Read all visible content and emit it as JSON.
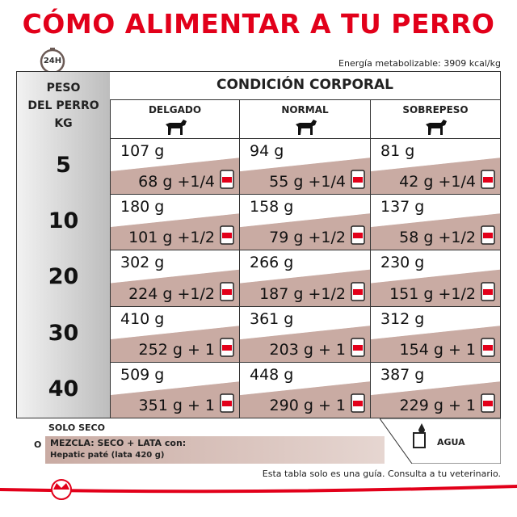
{
  "title": "CÓMO ALIMENTAR A TU PERRO",
  "clock_label": "24H",
  "energy": "Energía metabolizable: 3909 kcal/kg",
  "table": {
    "weight_header": [
      "PESO",
      "DEL PERRO",
      "KG"
    ],
    "condition_header": "CONDICIÓN CORPORAL",
    "conditions": [
      "DELGADO",
      "NORMAL",
      "SOBREPESO"
    ],
    "rows": [
      {
        "weight": "5",
        "cells": [
          {
            "dry": "107 g",
            "mix": "68 g +1/4"
          },
          {
            "dry": "94 g",
            "mix": "55 g +1/4"
          },
          {
            "dry": "81 g",
            "mix": "42 g +1/4"
          }
        ]
      },
      {
        "weight": "10",
        "cells": [
          {
            "dry": "180 g",
            "mix": "101 g +1/2"
          },
          {
            "dry": "158 g",
            "mix": "79 g +1/2"
          },
          {
            "dry": "137 g",
            "mix": "58 g +1/2"
          }
        ]
      },
      {
        "weight": "20",
        "cells": [
          {
            "dry": "302 g",
            "mix": "224 g +1/2"
          },
          {
            "dry": "266 g",
            "mix": "187 g +1/2"
          },
          {
            "dry": "230 g",
            "mix": "151 g +1/2"
          }
        ]
      },
      {
        "weight": "30",
        "cells": [
          {
            "dry": "410 g",
            "mix": "252 g + 1"
          },
          {
            "dry": "361 g",
            "mix": "203 g + 1"
          },
          {
            "dry": "312 g",
            "mix": "154 g + 1"
          }
        ]
      },
      {
        "weight": "40",
        "cells": [
          {
            "dry": "509 g",
            "mix": "351 g + 1"
          },
          {
            "dry": "448 g",
            "mix": "290 g + 1"
          },
          {
            "dry": "387 g",
            "mix": "229 g + 1"
          }
        ]
      }
    ]
  },
  "legend": {
    "dry": "SOLO SECO",
    "or": "O",
    "mix": "MEZCLA: SECO + LATA con:",
    "product": "Hepatic paté (lata 420 g)",
    "water": "AGUA"
  },
  "footer": "Esta tabla solo es una guía. Consulta a tu veterinario."
}
